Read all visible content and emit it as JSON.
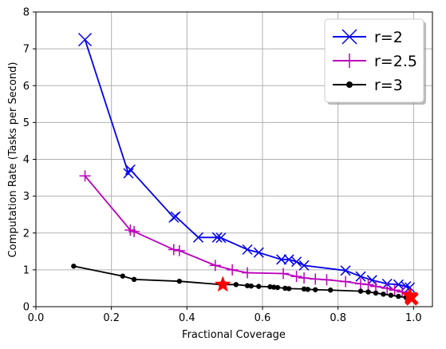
{
  "chart_data": {
    "type": "line",
    "xlabel": "Fractional Coverage",
    "ylabel": "Computation Rate (Tasks per Second)",
    "xlim": [
      0.0,
      1.05
    ],
    "ylim": [
      0,
      8
    ],
    "xticks": [
      "0.0",
      "0.2",
      "0.4",
      "0.6",
      "0.8",
      "1.0"
    ],
    "yticks": [
      "0",
      "1",
      "2",
      "3",
      "4",
      "5",
      "6",
      "7",
      "8"
    ],
    "grid": true,
    "legend_position": "top-right",
    "series": [
      {
        "name": "r=2",
        "color": "#0000ee",
        "marker": "x",
        "points": [
          [
            0.13,
            7.25
          ],
          [
            0.245,
            3.62
          ],
          [
            0.25,
            3.72
          ],
          [
            0.365,
            2.42
          ],
          [
            0.37,
            2.45
          ],
          [
            0.43,
            1.88
          ],
          [
            0.48,
            1.88
          ],
          [
            0.49,
            1.87
          ],
          [
            0.56,
            1.55
          ],
          [
            0.59,
            1.47
          ],
          [
            0.65,
            1.28
          ],
          [
            0.67,
            1.28
          ],
          [
            0.69,
            1.22
          ],
          [
            0.71,
            1.12
          ],
          [
            0.82,
            0.98
          ],
          [
            0.86,
            0.82
          ],
          [
            0.89,
            0.72
          ],
          [
            0.93,
            0.62
          ],
          [
            0.96,
            0.6
          ],
          [
            0.98,
            0.55
          ],
          [
            0.99,
            0.52
          ]
        ]
      },
      {
        "name": "r=2.5",
        "color": "#bb00bb",
        "marker": "+",
        "points": [
          [
            0.13,
            3.55
          ],
          [
            0.25,
            2.08
          ],
          [
            0.26,
            2.04
          ],
          [
            0.365,
            1.55
          ],
          [
            0.38,
            1.52
          ],
          [
            0.475,
            1.12
          ],
          [
            0.52,
            1.0
          ],
          [
            0.56,
            0.92
          ],
          [
            0.655,
            0.9
          ],
          [
            0.69,
            0.82
          ],
          [
            0.71,
            0.78
          ],
          [
            0.74,
            0.75
          ],
          [
            0.77,
            0.73
          ],
          [
            0.82,
            0.68
          ],
          [
            0.86,
            0.62
          ],
          [
            0.88,
            0.6
          ],
          [
            0.9,
            0.55
          ],
          [
            0.93,
            0.5
          ],
          [
            0.95,
            0.45
          ],
          [
            0.97,
            0.4
          ],
          [
            0.99,
            0.35
          ]
        ]
      },
      {
        "name": "r=3",
        "color": "#000000",
        "marker": "o",
        "points": [
          [
            0.1,
            1.1
          ],
          [
            0.23,
            0.83
          ],
          [
            0.26,
            0.74
          ],
          [
            0.38,
            0.69
          ],
          [
            0.49,
            0.6
          ],
          [
            0.53,
            0.6
          ],
          [
            0.56,
            0.57
          ],
          [
            0.57,
            0.56
          ],
          [
            0.59,
            0.55
          ],
          [
            0.62,
            0.54
          ],
          [
            0.63,
            0.53
          ],
          [
            0.64,
            0.52
          ],
          [
            0.66,
            0.5
          ],
          [
            0.67,
            0.49
          ],
          [
            0.71,
            0.48
          ],
          [
            0.72,
            0.47
          ],
          [
            0.74,
            0.46
          ],
          [
            0.78,
            0.45
          ],
          [
            0.86,
            0.42
          ],
          [
            0.88,
            0.4
          ],
          [
            0.9,
            0.37
          ],
          [
            0.92,
            0.34
          ],
          [
            0.94,
            0.31
          ],
          [
            0.96,
            0.28
          ],
          [
            0.98,
            0.25
          ],
          [
            0.99,
            0.23
          ]
        ]
      }
    ],
    "highlights": [
      {
        "marker": "star",
        "color": "#ff0000",
        "points": [
          [
            0.495,
            0.6
          ],
          [
            0.99,
            0.3
          ]
        ]
      },
      {
        "marker": "x-bold",
        "color": "#ff0000",
        "points": [
          [
            0.995,
            0.22
          ]
        ]
      }
    ]
  }
}
